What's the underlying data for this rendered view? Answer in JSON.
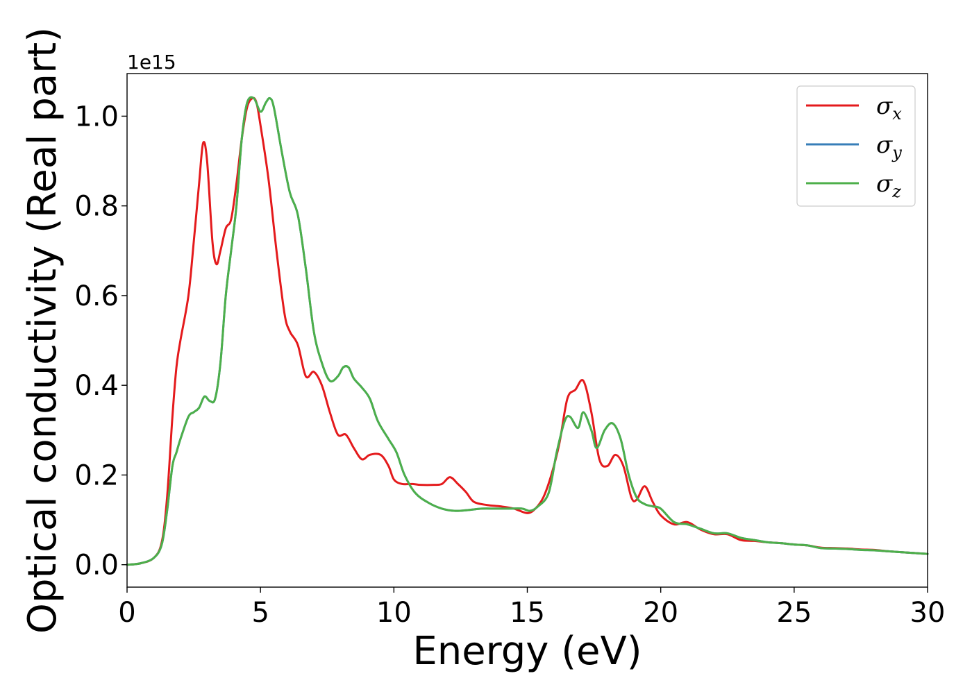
{
  "chart_data": {
    "type": "line",
    "title": "",
    "xlabel": "Energy (eV)",
    "ylabel": "Optical conductivity (Real part)",
    "y_offset_text": "1e15",
    "xlim": [
      0,
      30
    ],
    "ylim": [
      -0.05,
      1.095
    ],
    "x_ticks": [
      0,
      5,
      10,
      15,
      20,
      25,
      30
    ],
    "y_ticks": [
      0.0,
      0.2,
      0.4,
      0.6,
      0.8,
      1.0
    ],
    "y_tick_labels": [
      "0.0",
      "0.2",
      "0.4",
      "0.6",
      "0.8",
      "1.0"
    ],
    "grid": false,
    "legend_position": "top-right",
    "series": [
      {
        "name": "σx",
        "legend_symbol": "σ",
        "legend_subscript": "x",
        "color": "#e41a1c",
        "x": [
          0,
          0.5,
          1.0,
          1.3,
          1.5,
          1.7,
          1.85,
          2.0,
          2.3,
          2.5,
          2.7,
          2.85,
          3.0,
          3.2,
          3.35,
          3.5,
          3.7,
          3.9,
          4.1,
          4.3,
          4.5,
          4.7,
          4.85,
          5.0,
          5.3,
          5.6,
          5.9,
          6.1,
          6.4,
          6.7,
          7.0,
          7.3,
          7.6,
          7.9,
          8.2,
          8.5,
          8.8,
          9.1,
          9.5,
          9.8,
          10.0,
          10.3,
          10.7,
          11.0,
          11.5,
          11.8,
          12.1,
          12.4,
          12.7,
          13.0,
          13.5,
          14.0,
          14.5,
          15.0,
          15.3,
          15.6,
          15.9,
          16.2,
          16.5,
          16.8,
          17.1,
          17.4,
          17.7,
          18.0,
          18.3,
          18.6,
          18.9,
          19.1,
          19.4,
          19.7,
          20.0,
          20.5,
          21.0,
          21.5,
          22.0,
          22.5,
          23.0,
          23.5,
          24.0,
          24.5,
          25.0,
          25.5,
          26.0,
          26.5,
          27.0,
          27.5,
          28.0,
          28.5,
          29.0,
          29.5,
          30.0
        ],
        "values": [
          0.0,
          0.003,
          0.015,
          0.05,
          0.15,
          0.33,
          0.44,
          0.5,
          0.6,
          0.72,
          0.85,
          0.94,
          0.9,
          0.72,
          0.67,
          0.7,
          0.75,
          0.77,
          0.85,
          0.95,
          1.02,
          1.04,
          1.03,
          0.98,
          0.86,
          0.7,
          0.56,
          0.52,
          0.49,
          0.42,
          0.43,
          0.4,
          0.34,
          0.29,
          0.29,
          0.26,
          0.235,
          0.245,
          0.245,
          0.22,
          0.19,
          0.18,
          0.18,
          0.178,
          0.178,
          0.18,
          0.195,
          0.18,
          0.162,
          0.14,
          0.133,
          0.13,
          0.125,
          0.115,
          0.125,
          0.15,
          0.2,
          0.27,
          0.37,
          0.39,
          0.41,
          0.34,
          0.235,
          0.22,
          0.245,
          0.22,
          0.15,
          0.145,
          0.175,
          0.14,
          0.11,
          0.09,
          0.095,
          0.078,
          0.068,
          0.068,
          0.055,
          0.053,
          0.05,
          0.048,
          0.045,
          0.043,
          0.038,
          0.037,
          0.036,
          0.034,
          0.033,
          0.03,
          0.028,
          0.026,
          0.024
        ]
      },
      {
        "name": "σy",
        "legend_symbol": "σ",
        "legend_subscript": "y",
        "color": "#377eb8",
        "x": [
          0,
          0.5,
          1.0,
          1.3,
          1.5,
          1.7,
          1.85,
          2.0,
          2.3,
          2.5,
          2.7,
          2.9,
          3.1,
          3.3,
          3.5,
          3.7,
          3.9,
          4.1,
          4.3,
          4.5,
          4.75,
          5.0,
          5.2,
          5.35,
          5.5,
          5.8,
          6.1,
          6.4,
          6.7,
          7.0,
          7.3,
          7.6,
          7.9,
          8.1,
          8.3,
          8.5,
          8.8,
          9.1,
          9.4,
          9.8,
          10.1,
          10.4,
          10.8,
          11.3,
          11.8,
          12.3,
          12.8,
          13.3,
          13.8,
          14.3,
          14.8,
          15.1,
          15.4,
          15.8,
          16.1,
          16.4,
          16.6,
          16.9,
          17.1,
          17.4,
          17.6,
          17.9,
          18.2,
          18.5,
          18.8,
          19.1,
          19.4,
          19.7,
          20.0,
          20.5,
          21.0,
          21.5,
          22.0,
          22.5,
          23.0,
          23.5,
          24.0,
          24.5,
          25.0,
          25.5,
          26.0,
          26.5,
          27.0,
          27.5,
          28.0,
          28.5,
          29.0,
          29.5,
          30.0
        ],
        "values": [
          0.0,
          0.003,
          0.015,
          0.045,
          0.12,
          0.22,
          0.25,
          0.28,
          0.33,
          0.34,
          0.35,
          0.375,
          0.365,
          0.37,
          0.45,
          0.6,
          0.7,
          0.8,
          0.95,
          1.03,
          1.04,
          1.01,
          1.03,
          1.04,
          1.02,
          0.92,
          0.83,
          0.78,
          0.66,
          0.52,
          0.45,
          0.41,
          0.42,
          0.44,
          0.44,
          0.415,
          0.395,
          0.37,
          0.32,
          0.28,
          0.25,
          0.2,
          0.16,
          0.138,
          0.125,
          0.12,
          0.122,
          0.125,
          0.125,
          0.125,
          0.125,
          0.12,
          0.13,
          0.16,
          0.25,
          0.32,
          0.33,
          0.305,
          0.34,
          0.3,
          0.26,
          0.3,
          0.315,
          0.28,
          0.2,
          0.15,
          0.135,
          0.13,
          0.125,
          0.095,
          0.09,
          0.08,
          0.07,
          0.07,
          0.06,
          0.055,
          0.05,
          0.048,
          0.045,
          0.043,
          0.037,
          0.036,
          0.035,
          0.033,
          0.032,
          0.03,
          0.028,
          0.026,
          0.024
        ]
      },
      {
        "name": "σz",
        "legend_symbol": "σ",
        "legend_subscript": "z",
        "color": "#4daf4a",
        "x": [
          0,
          0.5,
          1.0,
          1.3,
          1.5,
          1.7,
          1.85,
          2.0,
          2.3,
          2.5,
          2.7,
          2.9,
          3.1,
          3.3,
          3.5,
          3.7,
          3.9,
          4.1,
          4.3,
          4.5,
          4.75,
          5.0,
          5.2,
          5.35,
          5.5,
          5.8,
          6.1,
          6.4,
          6.7,
          7.0,
          7.3,
          7.6,
          7.9,
          8.1,
          8.3,
          8.5,
          8.8,
          9.1,
          9.4,
          9.8,
          10.1,
          10.4,
          10.8,
          11.3,
          11.8,
          12.3,
          12.8,
          13.3,
          13.8,
          14.3,
          14.8,
          15.1,
          15.4,
          15.8,
          16.1,
          16.4,
          16.6,
          16.9,
          17.1,
          17.4,
          17.6,
          17.9,
          18.2,
          18.5,
          18.8,
          19.1,
          19.4,
          19.7,
          20.0,
          20.5,
          21.0,
          21.5,
          22.0,
          22.5,
          23.0,
          23.5,
          24.0,
          24.5,
          25.0,
          25.5,
          26.0,
          26.5,
          27.0,
          27.5,
          28.0,
          28.5,
          29.0,
          29.5,
          30.0
        ],
        "values": [
          0.0,
          0.003,
          0.015,
          0.045,
          0.12,
          0.22,
          0.25,
          0.28,
          0.33,
          0.34,
          0.35,
          0.375,
          0.365,
          0.37,
          0.45,
          0.6,
          0.7,
          0.8,
          0.95,
          1.03,
          1.04,
          1.01,
          1.03,
          1.04,
          1.02,
          0.92,
          0.83,
          0.78,
          0.66,
          0.52,
          0.45,
          0.41,
          0.42,
          0.44,
          0.44,
          0.415,
          0.395,
          0.37,
          0.32,
          0.28,
          0.25,
          0.2,
          0.16,
          0.138,
          0.125,
          0.12,
          0.122,
          0.125,
          0.125,
          0.125,
          0.125,
          0.12,
          0.13,
          0.16,
          0.25,
          0.32,
          0.33,
          0.305,
          0.34,
          0.3,
          0.26,
          0.3,
          0.315,
          0.28,
          0.2,
          0.15,
          0.135,
          0.13,
          0.125,
          0.095,
          0.09,
          0.08,
          0.07,
          0.07,
          0.06,
          0.055,
          0.05,
          0.048,
          0.045,
          0.043,
          0.037,
          0.036,
          0.035,
          0.033,
          0.032,
          0.03,
          0.028,
          0.026,
          0.024
        ]
      }
    ]
  }
}
